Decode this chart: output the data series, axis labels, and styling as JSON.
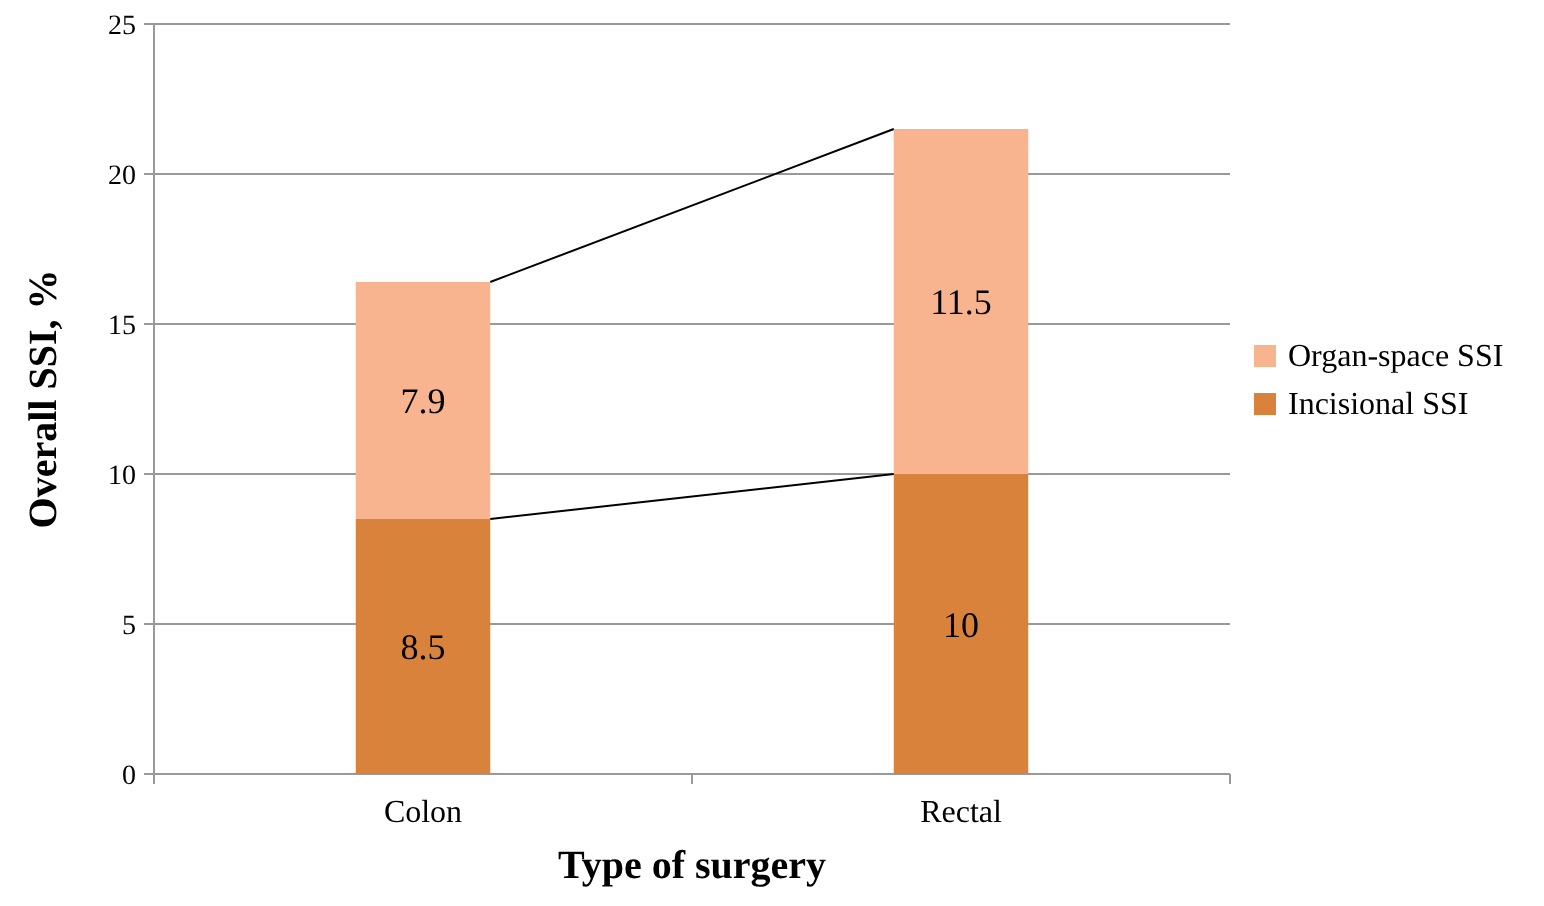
{
  "chart_data": {
    "type": "bar",
    "stacked": true,
    "categories": [
      "Colon",
      "Rectal"
    ],
    "series": [
      {
        "name": "Incisional SSI",
        "color": "#d9823b",
        "values": [
          8.5,
          10
        ]
      },
      {
        "name": "Organ-space SSI",
        "color": "#f8b48e",
        "values": [
          7.9,
          11.5
        ]
      }
    ],
    "xlabel": "Type of surgery",
    "ylabel": "Overall SSI, %",
    "ylim": [
      0,
      25
    ],
    "yticks": [
      0,
      5,
      10,
      15,
      20,
      25
    ],
    "grid": "y",
    "legend": "right",
    "data_labels": true
  }
}
